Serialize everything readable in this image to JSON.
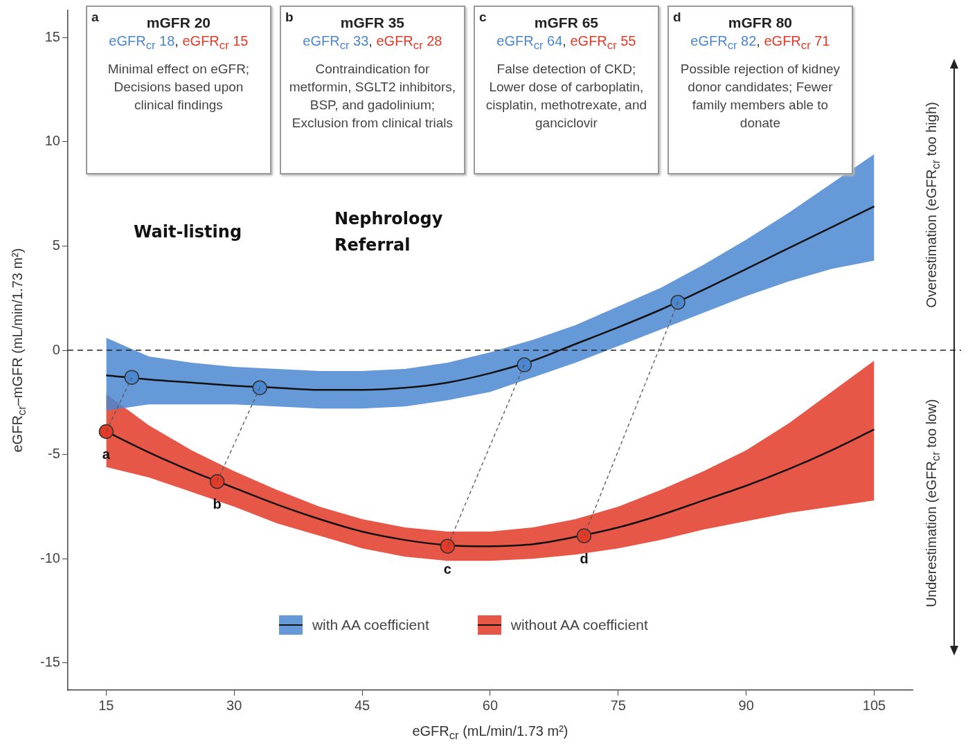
{
  "chart_data": {
    "type": "line",
    "xlabel": "eGFR$_{cr}$ (mL/min/1.73 m²)",
    "ylabel": "eGFR$_{cr}$–mGFR (mL/min/1.73 m²)",
    "xlim": [
      10.5,
      109.5
    ],
    "xticks": [
      15,
      30,
      45,
      60,
      75,
      90,
      105
    ],
    "ylim": [
      -16.3,
      16.3
    ],
    "yticks": [
      -15,
      -10,
      -5,
      0,
      5,
      10,
      15
    ],
    "series": [
      {
        "name": "with AA coefficient",
        "color": "#111111",
        "x": [
          15,
          20,
          25,
          30,
          35,
          40,
          45,
          50,
          55,
          60,
          65,
          70,
          75,
          80,
          85,
          90,
          95,
          100,
          105
        ],
        "values": [
          -1.2,
          -1.4,
          -1.55,
          -1.7,
          -1.8,
          -1.9,
          -1.9,
          -1.8,
          -1.55,
          -1.1,
          -0.5,
          0.3,
          1.1,
          1.95,
          2.9,
          3.9,
          4.9,
          5.9,
          6.9
        ],
        "lower": [
          -2.9,
          -2.6,
          -2.6,
          -2.6,
          -2.7,
          -2.8,
          -2.8,
          -2.7,
          -2.4,
          -2.0,
          -1.3,
          -0.6,
          0.2,
          1.0,
          1.8,
          2.6,
          3.3,
          3.9,
          4.3
        ],
        "upper": [
          0.6,
          -0.3,
          -0.6,
          -0.8,
          -0.9,
          -1.0,
          -1.0,
          -0.9,
          -0.6,
          -0.1,
          0.5,
          1.2,
          2.1,
          3.0,
          4.1,
          5.3,
          6.6,
          8.0,
          9.4
        ]
      },
      {
        "name": "without AA coefficient",
        "color": "#111111",
        "x": [
          15,
          20,
          25,
          30,
          35,
          40,
          45,
          50,
          55,
          60,
          65,
          70,
          75,
          80,
          85,
          90,
          95,
          100,
          105
        ],
        "values": [
          -3.9,
          -4.9,
          -5.8,
          -6.6,
          -7.4,
          -8.1,
          -8.7,
          -9.1,
          -9.35,
          -9.4,
          -9.3,
          -8.95,
          -8.5,
          -7.9,
          -7.2,
          -6.5,
          -5.7,
          -4.8,
          -3.8
        ],
        "lower": [
          -5.6,
          -6.1,
          -6.8,
          -7.5,
          -8.3,
          -8.9,
          -9.5,
          -9.9,
          -10.1,
          -10.1,
          -10.0,
          -9.8,
          -9.5,
          -9.1,
          -8.6,
          -8.2,
          -7.8,
          -7.5,
          -7.2
        ],
        "upper": [
          -2.1,
          -3.6,
          -4.8,
          -5.8,
          -6.7,
          -7.5,
          -8.1,
          -8.5,
          -8.7,
          -8.7,
          -8.5,
          -8.1,
          -7.5,
          -6.7,
          -5.8,
          -4.8,
          -3.5,
          -2.0,
          -0.5
        ]
      },
      {
        "type": "scatter",
        "marker": "circle",
        "color": "#4a87d0",
        "x": [
          18,
          33,
          64,
          82
        ],
        "values": [
          -1.3,
          -1.8,
          -0.7,
          2.3
        ]
      },
      {
        "type": "scatter",
        "marker": "circle",
        "color": "#e23a28",
        "x": [
          15,
          28,
          55,
          71
        ],
        "values": [
          -3.9,
          -6.3,
          -9.4,
          -8.9
        ]
      }
    ],
    "ref_lines": [
      {
        "axis": "y",
        "value": 0,
        "line_style": "dashed",
        "color": "#222222"
      }
    ],
    "annotations": [
      "a\nmGFR 20\neGFR$_{cr}$ 18, eGFR$_{cr}$ 15\nMinimal effect on eGFR; Decisions based upon clinical findings",
      "b\nmGFR 35\neGFR$_{cr}$ 33, eGFR$_{cr}$ 28\nContraindication for metformin, SGLT2 inhibitors, BSP, and gadolinium; Exclusion from clinical trials",
      "c\nmGFR 65\neGFR$_{cr}$ 64, eGFR$_{cr}$ 55\nFalse detection of CKD; Lower dose of carboplatin, cisplatin, methotrexate, and ganciclovir",
      "d\nmGFR 80\neGFR$_{cr}$ 82, eGFR$_{cr}$ 71\nPossible rejection of kidney donor candidates; Fewer family members able to donate",
      "Overestimation (eGFR$_{cr}$ too high)",
      "Underestimation (eGFR$_{cr}$ too low)",
      "Wait-listing",
      "Nephrology\nReferral",
      {
        "text": "a",
        "x": 15,
        "y": -3.9
      },
      {
        "text": "b",
        "x": 28,
        "y": -6.3
      },
      {
        "text": "c",
        "x": 55,
        "y": -9.4
      },
      {
        "text": "d",
        "x": 71,
        "y": -8.9
      }
    ],
    "legend": "bottom",
    "line_style": "solid"
  }
}
